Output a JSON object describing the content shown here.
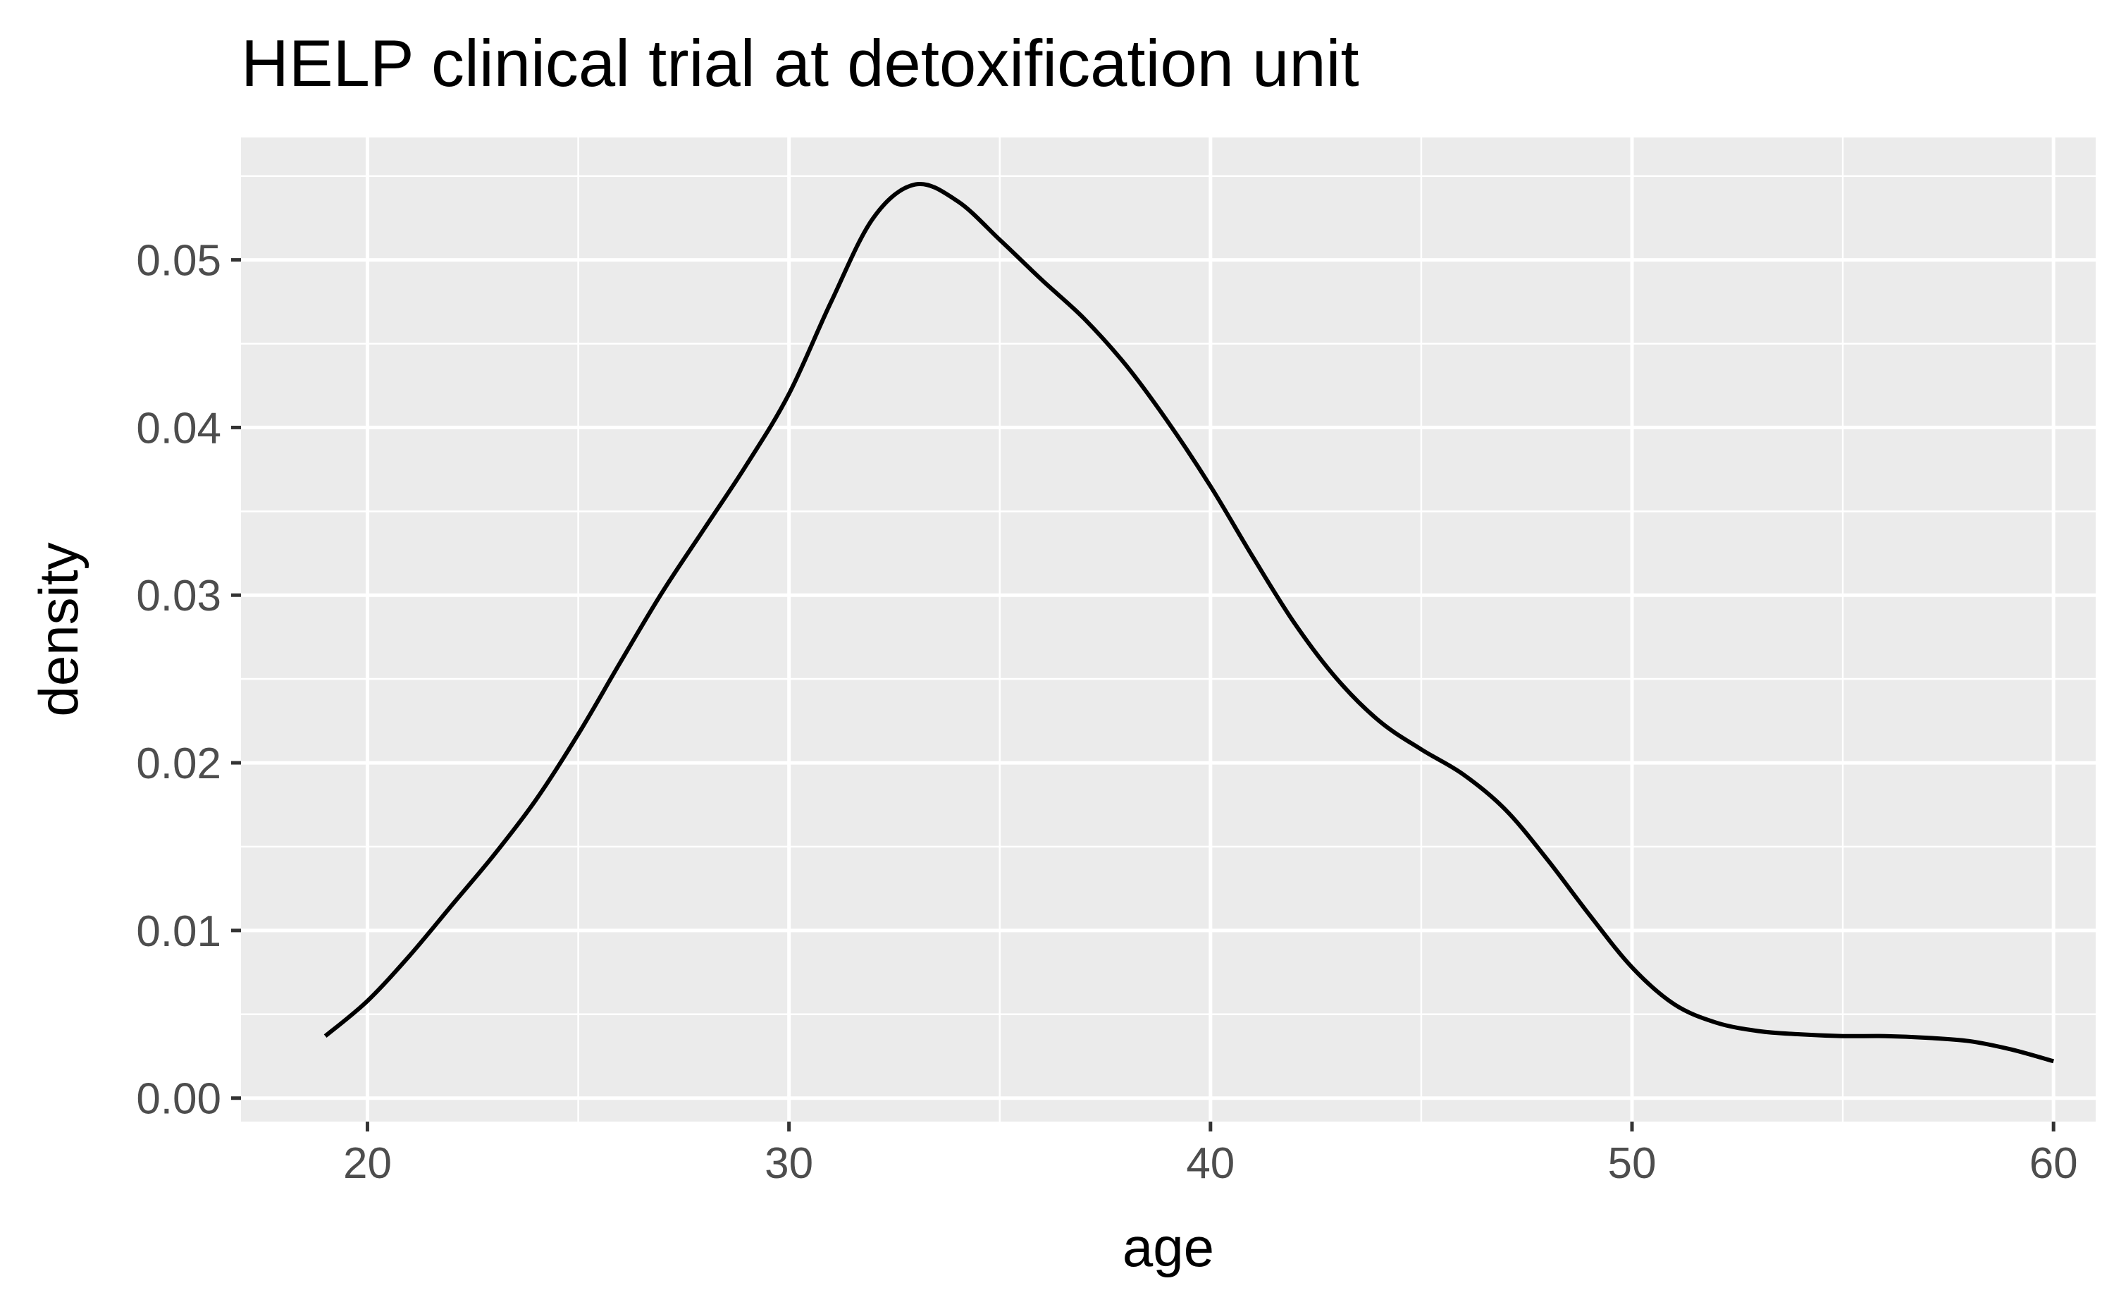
{
  "chart_data": {
    "type": "line",
    "title": "HELP clinical trial at detoxification unit",
    "xlabel": "age",
    "ylabel": "density",
    "xlim": [
      17,
      61
    ],
    "ylim": [
      -0.0014,
      0.0573
    ],
    "xticks": [
      20,
      30,
      40,
      50,
      60
    ],
    "xtick_labels": [
      "20",
      "30",
      "40",
      "50",
      "60"
    ],
    "yticks": [
      0.0,
      0.01,
      0.02,
      0.03,
      0.04,
      0.05
    ],
    "ytick_labels": [
      "0.00",
      "0.01",
      "0.02",
      "0.03",
      "0.04",
      "0.05"
    ],
    "grid": true,
    "legend": "none",
    "colors": {
      "panel": "#ebebeb",
      "grid": "#ffffff",
      "line": "#000000",
      "ticks": "#333333",
      "tick_labels": "#4d4d4d"
    },
    "series": [
      {
        "x": [
          19,
          20,
          21,
          22,
          23,
          24,
          25,
          26,
          27,
          28,
          29,
          30,
          31,
          32,
          33,
          34,
          35,
          36,
          37,
          38,
          39,
          40,
          41,
          42,
          43,
          44,
          45,
          46,
          47,
          48,
          49,
          50,
          51,
          52,
          53,
          54,
          55,
          56,
          57,
          58,
          59,
          60
        ],
        "y": [
          0.0037,
          0.0058,
          0.0085,
          0.0115,
          0.0145,
          0.0178,
          0.0217,
          0.026,
          0.0302,
          0.034,
          0.0378,
          0.042,
          0.0475,
          0.0525,
          0.0545,
          0.0535,
          0.0512,
          0.0488,
          0.0465,
          0.0437,
          0.0403,
          0.0365,
          0.0323,
          0.0283,
          0.025,
          0.0225,
          0.0208,
          0.0193,
          0.0172,
          0.0142,
          0.0109,
          0.0078,
          0.0056,
          0.0045,
          0.004,
          0.0038,
          0.0037,
          0.0037,
          0.0036,
          0.0034,
          0.0029,
          0.0022
        ]
      }
    ]
  }
}
